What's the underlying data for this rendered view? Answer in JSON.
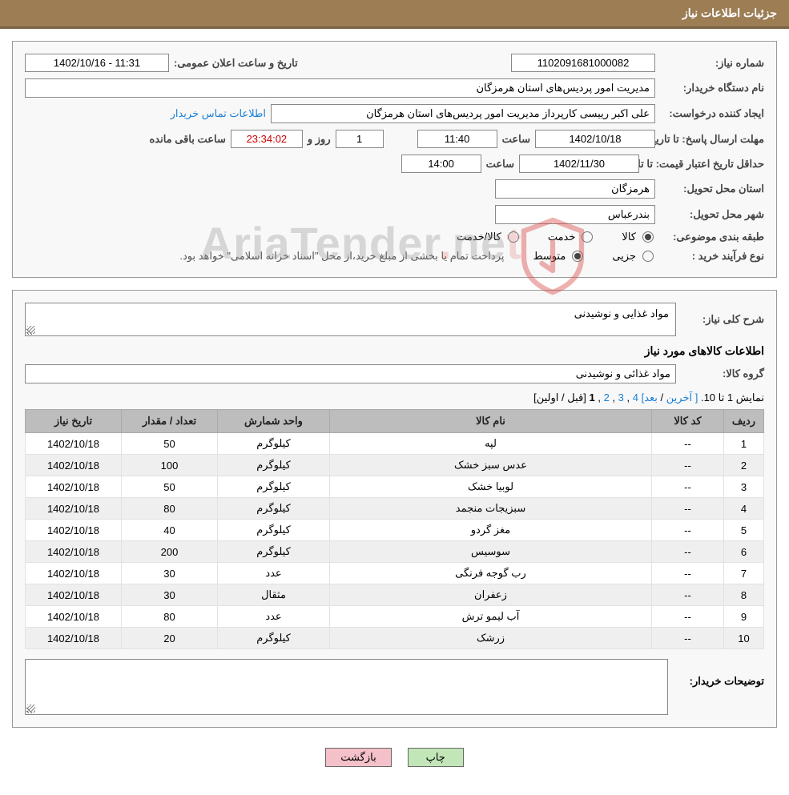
{
  "header": {
    "title": "جزئیات اطلاعات نیاز"
  },
  "colors": {
    "header_bg": "#9c7d54",
    "header_border": "#7a6140",
    "panel_border": "#999999",
    "panel_bg": "#f8f8f8",
    "field_border": "#888888",
    "link": "#1a7fd6",
    "red": "#cc0000",
    "table_header_bg": "#bdbdbd",
    "row_alt_bg": "#efefef",
    "btn_green_bg": "#c3e6b8",
    "btn_pink_bg": "#f4c0c9",
    "watermark_gray": "#999999",
    "watermark_red": "#d9534f"
  },
  "watermark": {
    "prefix": "AriaTender",
    "dot": ".",
    "suffix": "ne",
    "tail": "t"
  },
  "labels": {
    "need_number": "شماره نیاز:",
    "announce_datetime": "تاریخ و ساعت اعلان عمومی:",
    "buyer_org": "نام دستگاه خریدار:",
    "request_creator": "ایجاد کننده درخواست:",
    "contact_link": "اطلاعات تماس خریدار",
    "deadline_send": "مهلت ارسال پاسخ:",
    "until_date": "تا تاریخ:",
    "hour": "ساعت",
    "days_and": "روز و",
    "remaining": "ساعت باقی مانده",
    "min_price_validity": "حداقل تاریخ اعتبار قیمت:",
    "delivery_province": "استان محل تحویل:",
    "delivery_city": "شهر محل تحویل:",
    "subject_class": "طبقه بندی موضوعی:",
    "opt_goods": "کالا",
    "opt_service": "خدمت",
    "opt_goods_service": "کالا/خدمت",
    "purchase_type": "نوع فرآیند خرید :",
    "opt_minor": "جزیی",
    "opt_medium": "متوسط",
    "purchase_note": "پرداخت تمام یا بخشی از مبلغ خرید،از محل \"اسناد خزانه اسلامی\" خواهد بود.",
    "need_desc": "شرح کلی نیاز:",
    "goods_info_title": "اطلاعات کالاهای مورد نیاز",
    "goods_group": "گروه کالا:",
    "buyer_notes": "توضیحات خریدار:"
  },
  "fields": {
    "need_number": "1102091681000082",
    "announce_datetime": "1402/10/16 - 11:31",
    "buyer_org": "مدیریت امور پردیس‌های استان هرمزگان",
    "request_creator": "علی اکبر رییسی کارپرداز مدیریت امور پردیس‌های استان هرمزگان",
    "deadline_date": "1402/10/18",
    "deadline_hour": "11:40",
    "remaining_days": "1",
    "remaining_time": "23:34:02",
    "price_validity_date": "1402/11/30",
    "price_validity_hour": "14:00",
    "province": "هرمزگان",
    "city": "بندرعباس",
    "need_desc_value": "مواد غذایی و نوشیدنی",
    "goods_group_value": "مواد غذائی و نوشیدنی",
    "buyer_notes_value": ""
  },
  "radios": {
    "subject_selected": "goods",
    "purchase_selected": "medium"
  },
  "pager": {
    "text_prefix": "نمایش 1 تا 10. ",
    "last": "[ آخرین",
    "sep": " / ",
    "next": "بعد] ",
    "p4": "4",
    "p3": "3",
    "p2": "2",
    "p1": "1",
    "prev_first": " [قبل / اولین]",
    "comma": " ,"
  },
  "table": {
    "headers": {
      "row": "ردیف",
      "code": "کد کالا",
      "name": "نام کالا",
      "unit": "واحد شمارش",
      "qty": "تعداد / مقدار",
      "date": "تاریخ نیاز"
    },
    "rows": [
      {
        "row": "1",
        "code": "--",
        "name": "لپه",
        "unit": "کیلوگرم",
        "qty": "50",
        "date": "1402/10/18"
      },
      {
        "row": "2",
        "code": "--",
        "name": "عدس سبز خشک",
        "unit": "کیلوگرم",
        "qty": "100",
        "date": "1402/10/18"
      },
      {
        "row": "3",
        "code": "--",
        "name": "لوبیا خشک",
        "unit": "کیلوگرم",
        "qty": "50",
        "date": "1402/10/18"
      },
      {
        "row": "4",
        "code": "--",
        "name": "سبزیجات منجمد",
        "unit": "کیلوگرم",
        "qty": "80",
        "date": "1402/10/18"
      },
      {
        "row": "5",
        "code": "--",
        "name": "مغز گردو",
        "unit": "کیلوگرم",
        "qty": "40",
        "date": "1402/10/18"
      },
      {
        "row": "6",
        "code": "--",
        "name": "سوسیس",
        "unit": "کیلوگرم",
        "qty": "200",
        "date": "1402/10/18"
      },
      {
        "row": "7",
        "code": "--",
        "name": "رب گوجه فرنگی",
        "unit": "عدد",
        "qty": "30",
        "date": "1402/10/18"
      },
      {
        "row": "8",
        "code": "--",
        "name": "زعفران",
        "unit": "مثقال",
        "qty": "30",
        "date": "1402/10/18"
      },
      {
        "row": "9",
        "code": "--",
        "name": "آب لیمو ترش",
        "unit": "عدد",
        "qty": "80",
        "date": "1402/10/18"
      },
      {
        "row": "10",
        "code": "--",
        "name": "زرشک",
        "unit": "کیلوگرم",
        "qty": "20",
        "date": "1402/10/18"
      }
    ]
  },
  "buttons": {
    "print": "چاپ",
    "back": "بازگشت"
  }
}
